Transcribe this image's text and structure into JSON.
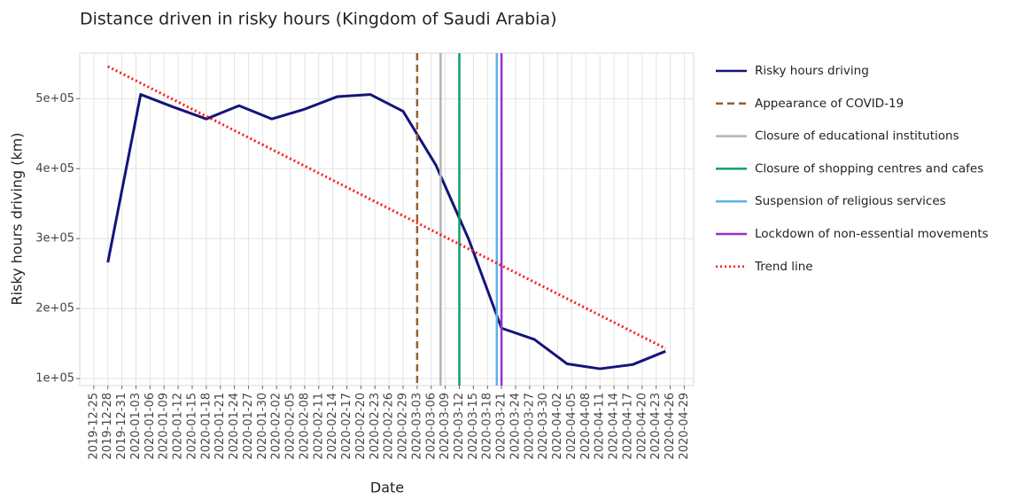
{
  "chart_data": {
    "type": "line",
    "title": "Distance driven in risky hours (Kingdom of Saudi Arabia)",
    "x_label": "Date",
    "y_label": "Risky hours driving (km)",
    "xlim": [
      "2019-12-22",
      "2020-05-01"
    ],
    "xticks": [
      "2019-12-25",
      "2019-12-28",
      "2019-12-31",
      "2020-01-03",
      "2020-01-06",
      "2020-01-09",
      "2020-01-12",
      "2020-01-15",
      "2020-01-18",
      "2020-01-21",
      "2020-01-24",
      "2020-01-27",
      "2020-01-30",
      "2020-02-02",
      "2020-02-05",
      "2020-02-08",
      "2020-02-11",
      "2020-02-14",
      "2020-02-17",
      "2020-02-20",
      "2020-02-23",
      "2020-02-26",
      "2020-02-29",
      "2020-03-03",
      "2020-03-06",
      "2020-03-09",
      "2020-03-12",
      "2020-03-15",
      "2020-03-18",
      "2020-03-21",
      "2020-03-24",
      "2020-03-27",
      "2020-03-30",
      "2020-04-02",
      "2020-04-05",
      "2020-04-08",
      "2020-04-11",
      "2020-04-14",
      "2020-04-17",
      "2020-04-20",
      "2020-04-23",
      "2020-04-26",
      "2020-04-29"
    ],
    "ylim": [
      90000,
      565000
    ],
    "yticks": [
      {
        "value": 100000,
        "label": "1e+05"
      },
      {
        "value": 200000,
        "label": "2e+05"
      },
      {
        "value": 300000,
        "label": "3e+05"
      },
      {
        "value": 400000,
        "label": "4e+05"
      },
      {
        "value": 500000,
        "label": "5e+05"
      }
    ],
    "grid": true,
    "series": [
      {
        "name": "Risky hours driving",
        "color": "#14147a",
        "dash": "solid",
        "x": [
          "2019-12-28",
          "2020-01-04",
          "2020-01-11",
          "2020-01-18",
          "2020-01-25",
          "2020-02-01",
          "2020-02-08",
          "2020-02-15",
          "2020-02-22",
          "2020-02-29",
          "2020-03-07",
          "2020-03-14",
          "2020-03-21",
          "2020-03-28",
          "2020-04-04",
          "2020-04-11",
          "2020-04-18",
          "2020-04-25"
        ],
        "values": [
          266000,
          506000,
          488000,
          471000,
          490000,
          471000,
          485000,
          503000,
          506000,
          482000,
          405000,
          299000,
          172000,
          156000,
          121000,
          114000,
          120000,
          139000
        ]
      },
      {
        "name": "Appearance of COVID-19",
        "color": "#94602f",
        "dash": "dashed",
        "date": "2020-03-03"
      },
      {
        "name": "Closure of educational institutions",
        "color": "#b4b4b4",
        "dash": "solid",
        "date": "2020-03-08"
      },
      {
        "name": "Closure of shopping centres and cafes",
        "color": "#0f9e6e",
        "dash": "solid",
        "date": "2020-03-12"
      },
      {
        "name": "Suspension of religious services",
        "color": "#5ab4e6",
        "dash": "solid",
        "date": "2020-03-20"
      },
      {
        "name": "Lockdown of non-essential movements",
        "color": "#9a2fd0",
        "dash": "solid",
        "date": "2020-03-21"
      },
      {
        "name": "Trend line",
        "color": "#ff1a1a",
        "dash": "dotted",
        "x": [
          "2019-12-28",
          "2020-04-25"
        ],
        "values": [
          546000,
          143000
        ]
      }
    ]
  }
}
